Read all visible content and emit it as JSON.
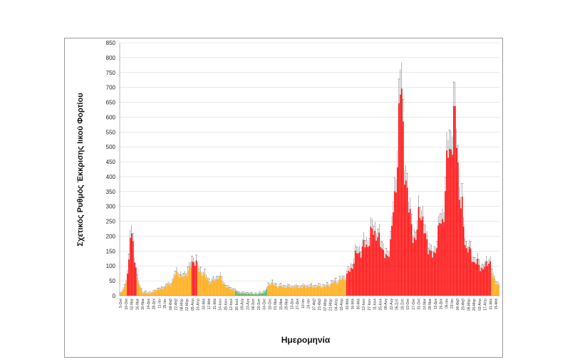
{
  "chart_data": {
    "type": "bar",
    "title": "",
    "xlabel": "Ημερομηνία",
    "ylabel": "Σχετικός Ρυθμός Έκκρισης Ιικού Φορτίου",
    "ylim": [
      0,
      850
    ],
    "ytick_step": 50,
    "grid": true,
    "legend": "none",
    "colors": {
      "red": "#ff0000",
      "orange": "#ffa500",
      "green": "#4caf50",
      "error": "#666666",
      "grid": "#d9d9d9"
    },
    "x_tick_labels": [
      "5-Οκτ",
      "19-Οκτ",
      "02-Νοε",
      "16-Νοε",
      "30-Νοε",
      "14-Δεκ",
      "28-Δεκ",
      "11-Ιαν",
      "25-Ιαν",
      "08-Φεβ",
      "22-Φεβ",
      "08-Μαρ",
      "22-Μαρ",
      "05-Απρ",
      "19-Απρ",
      "03-Μαϊ",
      "17-Μαϊ",
      "31-Μαϊ",
      "14-Ιουν",
      "28-Ιουν",
      "12-Ιουλ",
      "26-Ιουλ",
      "09-Αυγ",
      "23-Αυγ",
      "06-Σεπ",
      "20-Σεπ",
      "04-Οκτ",
      "18-Οκτ",
      "01-Νοε",
      "15-Νοε",
      "29-Νοε",
      "13-Δεκ",
      "27-Δεκ",
      "10-Ιαν",
      "24-Ιαν",
      "07-Φεβ",
      "21-Φεβ",
      "07-Μαρ",
      "21-Μαρ",
      "04-Απρ",
      "18-Απρ",
      "02-Μαϊ",
      "16-Μαϊ",
      "30-Μαϊ",
      "13-Ιουν",
      "27-Ιουν",
      "11-Ιουλ",
      "25-Ιουλ",
      "08-Αυγ",
      "22-Αυγ",
      "05-Σεπ",
      "19-Σεπ",
      "03-Οκτ",
      "17-Οκτ",
      "31-Οκτ",
      "14-Νοε",
      "28-Νοε",
      "12-Δεκ",
      "26-Δεκ",
      "09-Ιαν",
      "23-Ιαν",
      "06-Φεβ",
      "20-Φεβ",
      "06-Μαρ",
      "20-Μαρ",
      "03-Απρ",
      "17-Απρ",
      "01-Μαϊ",
      "15-Μαϊ"
    ],
    "series_keypoints": {
      "note_index_domain": [
        0,
        1
      ],
      "points": [
        [
          0.0,
          5,
          "orange"
        ],
        [
          0.012,
          30,
          "orange"
        ],
        [
          0.02,
          90,
          "red"
        ],
        [
          0.03,
          225,
          "red"
        ],
        [
          0.038,
          120,
          "red"
        ],
        [
          0.046,
          45,
          "orange"
        ],
        [
          0.06,
          10,
          "orange"
        ],
        [
          0.08,
          8,
          "orange"
        ],
        [
          0.1,
          20,
          "orange"
        ],
        [
          0.13,
          35,
          "orange"
        ],
        [
          0.15,
          75,
          "orange"
        ],
        [
          0.165,
          60,
          "orange"
        ],
        [
          0.18,
          85,
          "orange"
        ],
        [
          0.195,
          120,
          "red"
        ],
        [
          0.21,
          80,
          "orange"
        ],
        [
          0.24,
          45,
          "orange"
        ],
        [
          0.26,
          60,
          "orange"
        ],
        [
          0.285,
          25,
          "orange"
        ],
        [
          0.32,
          8,
          "green"
        ],
        [
          0.36,
          5,
          "green"
        ],
        [
          0.38,
          10,
          "green"
        ],
        [
          0.395,
          40,
          "orange"
        ],
        [
          0.42,
          30,
          "orange"
        ],
        [
          0.46,
          28,
          "orange"
        ],
        [
          0.5,
          30,
          "orange"
        ],
        [
          0.54,
          30,
          "orange"
        ],
        [
          0.57,
          45,
          "orange"
        ],
        [
          0.59,
          55,
          "orange"
        ],
        [
          0.605,
          80,
          "red"
        ],
        [
          0.625,
          140,
          "red"
        ],
        [
          0.65,
          170,
          "red"
        ],
        [
          0.67,
          220,
          "red"
        ],
        [
          0.69,
          170,
          "red"
        ],
        [
          0.705,
          120,
          "red"
        ],
        [
          0.725,
          300,
          "red"
        ],
        [
          0.74,
          700,
          "red"
        ],
        [
          0.752,
          430,
          "red"
        ],
        [
          0.765,
          260,
          "red"
        ],
        [
          0.78,
          180,
          "red"
        ],
        [
          0.792,
          300,
          "red"
        ],
        [
          0.805,
          200,
          "red"
        ],
        [
          0.825,
          130,
          "red"
        ],
        [
          0.85,
          250,
          "red"
        ],
        [
          0.87,
          500,
          "red"
        ],
        [
          0.885,
          580,
          "red"
        ],
        [
          0.9,
          300,
          "red"
        ],
        [
          0.915,
          160,
          "red"
        ],
        [
          0.94,
          110,
          "red"
        ],
        [
          0.96,
          90,
          "red"
        ],
        [
          0.975,
          120,
          "red"
        ],
        [
          0.985,
          60,
          "orange"
        ],
        [
          1.0,
          35,
          "orange"
        ]
      ]
    }
  },
  "labels": {
    "x_title": "Ημερομηνία",
    "y_title": "Σχετικός Ρυθμός Έκκρισης Ιικού Φορτίου"
  }
}
